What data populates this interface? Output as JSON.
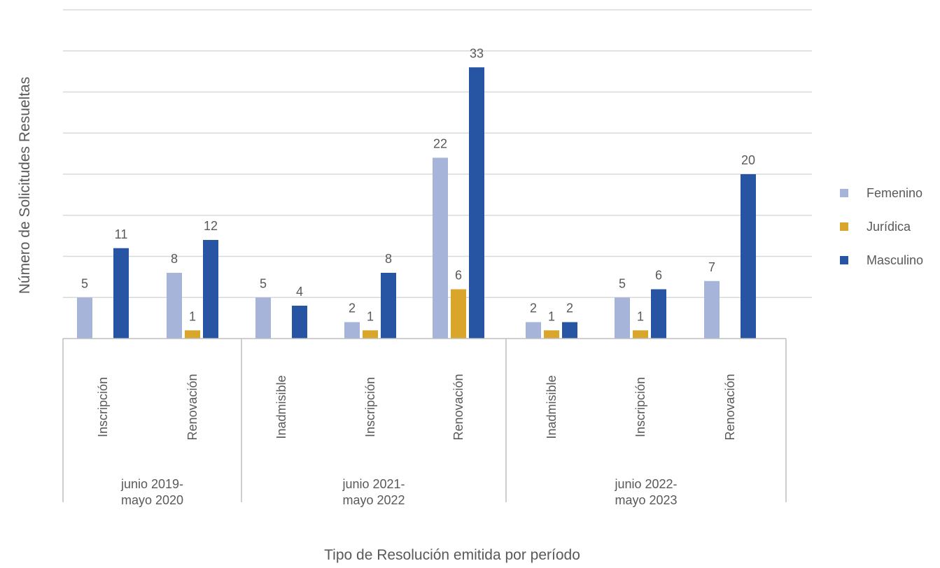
{
  "chart_data": {
    "type": "bar",
    "title": "",
    "xlabel": "Tipo de Resolución emitida por período",
    "ylabel": "Número de Solicitudes Resueltas",
    "ylim": [
      0,
      40
    ],
    "grid": true,
    "legend_position": "right",
    "groups": [
      {
        "label_lines": [
          "junio 2019-",
          "mayo 2020"
        ],
        "categories": [
          "Inscripción",
          "Renovación"
        ]
      },
      {
        "label_lines": [
          "junio 2021-",
          "mayo 2022"
        ],
        "categories": [
          "Inadmisible",
          "Inscripción",
          "Renovación"
        ]
      },
      {
        "label_lines": [
          "junio 2022-",
          "mayo 2023"
        ],
        "categories": [
          "Inadmisible",
          "Inscripción",
          "Renovación"
        ]
      }
    ],
    "series": [
      {
        "name": "Femenino",
        "color": "#a5b4d8",
        "values": [
          5,
          8,
          5,
          2,
          22,
          2,
          5,
          7
        ]
      },
      {
        "name": "Jurídica",
        "color": "#daa52b",
        "values": [
          null,
          1,
          null,
          1,
          6,
          1,
          1,
          null
        ]
      },
      {
        "name": "Masculino",
        "color": "#2855a3",
        "values": [
          11,
          12,
          4,
          8,
          33,
          2,
          6,
          20
        ]
      }
    ]
  }
}
